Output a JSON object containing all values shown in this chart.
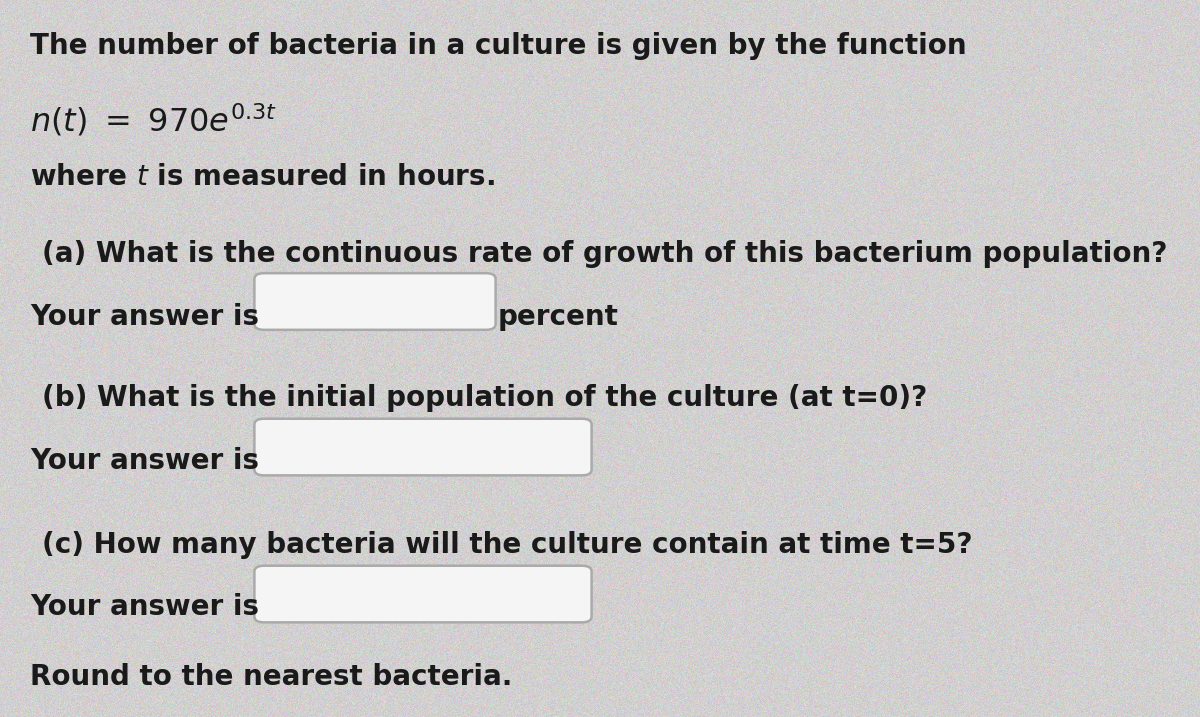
{
  "background_color": "#d8d8d8",
  "text_color": "#1a1a1a",
  "font_family": "DejaVu Sans",
  "title_line1": "The number of bacteria in a culture is given by the function",
  "part_a_line1": "(a) What is the continuous rate of growth of this bacterium population?",
  "part_b_line1": "(b) What is the initial population of the culture (at t=0)?",
  "part_c_line1": "(c) How many bacteria will the culture contain at time t=5?",
  "part_c_line3": "Round to the nearest bacteria.",
  "box_color": "#f0f0f0",
  "box_edge_color": "#999999",
  "font_size_main": 20,
  "font_size_formula": 22
}
